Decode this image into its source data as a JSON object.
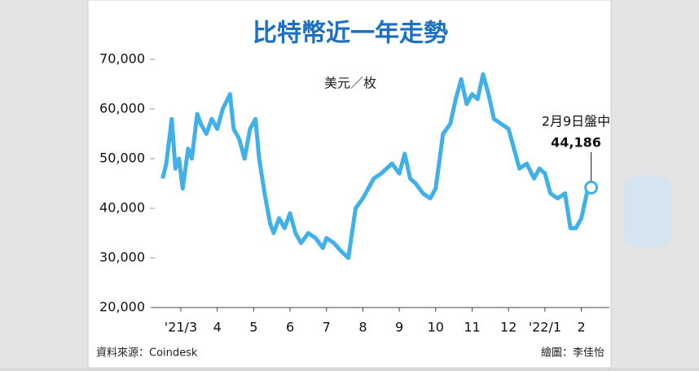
{
  "chart_data": {
    "type": "line",
    "title": "比特幣近一年走勢",
    "y_label": "美元／枚",
    "annotation": "2月9日盤中",
    "source": "資料來源：Coindesk",
    "credit": "繪圖：李佳怡",
    "xlim": [
      0.45,
      14.77
    ],
    "xticks": [
      {
        "value": 3,
        "label": "'21/3"
      },
      4,
      5,
      6,
      7,
      8,
      9,
      10,
      11,
      12,
      {
        "value": 13,
        "label": "'22/1"
      },
      {
        "value": 14,
        "label": "2"
      }
    ],
    "ylim": [
      20000,
      70000
    ],
    "yticks": [
      {
        "value": 20000,
        "label": "20,000"
      },
      {
        "value": 30000,
        "label": "30,000"
      },
      {
        "value": 40000,
        "label": "40,000"
      },
      {
        "value": 50000,
        "label": "50,000"
      },
      {
        "value": 60000,
        "label": "60,000"
      },
      {
        "value": 70000,
        "label": "70,000"
      }
    ],
    "series": [
      {
        "name": "比特幣",
        "color": "#3fb0e8",
        "x": [
          2.5,
          2.6,
          2.7,
          2.75,
          2.85,
          2.95,
          3.05,
          3.2,
          3.3,
          3.45,
          3.55,
          3.7,
          3.85,
          4.0,
          4.15,
          4.35,
          4.45,
          4.6,
          4.75,
          4.9,
          5.05,
          5.15,
          5.3,
          5.45,
          5.55,
          5.7,
          5.85,
          6.0,
          6.15,
          6.3,
          6.5,
          6.7,
          6.9,
          7.0,
          7.2,
          7.45,
          7.6,
          7.8,
          8.0,
          8.3,
          8.5,
          8.8,
          9.0,
          9.15,
          9.3,
          9.45,
          9.65,
          9.85,
          10.0,
          10.2,
          10.4,
          10.55,
          10.7,
          10.85,
          11.0,
          11.15,
          11.3,
          11.45,
          11.6,
          11.8,
          12.0,
          12.15,
          12.3,
          12.5,
          12.7,
          12.85,
          13.0,
          13.15,
          13.35,
          13.55,
          13.7,
          13.85,
          14.0,
          14.15,
          14.27
        ],
        "values": [
          46000,
          49000,
          55000,
          58000,
          48000,
          50000,
          44000,
          52000,
          50000,
          59000,
          57000,
          55000,
          58000,
          56000,
          60000,
          63000,
          56000,
          54000,
          50000,
          56000,
          58000,
          50000,
          43000,
          37000,
          35000,
          38000,
          36000,
          39000,
          35000,
          33000,
          35000,
          34000,
          32000,
          34000,
          33000,
          31000,
          30000,
          40000,
          42000,
          46000,
          47000,
          49000,
          47000,
          51000,
          46000,
          45000,
          43000,
          42000,
          44000,
          55000,
          57000,
          62000,
          66000,
          61000,
          63000,
          62000,
          67000,
          63000,
          58000,
          57000,
          56000,
          52000,
          48000,
          49000,
          46000,
          48000,
          47000,
          43000,
          42000,
          43000,
          36000,
          36000,
          38000,
          43000,
          44186
        ],
        "value_labels": [
          null,
          null,
          null,
          null,
          null,
          null,
          null,
          null,
          null,
          null,
          null,
          null,
          null,
          null,
          null,
          null,
          null,
          null,
          null,
          null,
          null,
          null,
          null,
          null,
          null,
          null,
          null,
          null,
          null,
          null,
          null,
          null,
          null,
          null,
          null,
          null,
          null,
          null,
          null,
          null,
          null,
          null,
          null,
          null,
          null,
          null,
          null,
          null,
          null,
          null,
          null,
          null,
          null,
          null,
          null,
          null,
          null,
          null,
          null,
          null,
          null,
          null,
          null,
          null,
          null,
          null,
          null,
          null,
          null,
          null,
          null,
          null,
          null,
          null,
          "44,186"
        ]
      }
    ]
  }
}
